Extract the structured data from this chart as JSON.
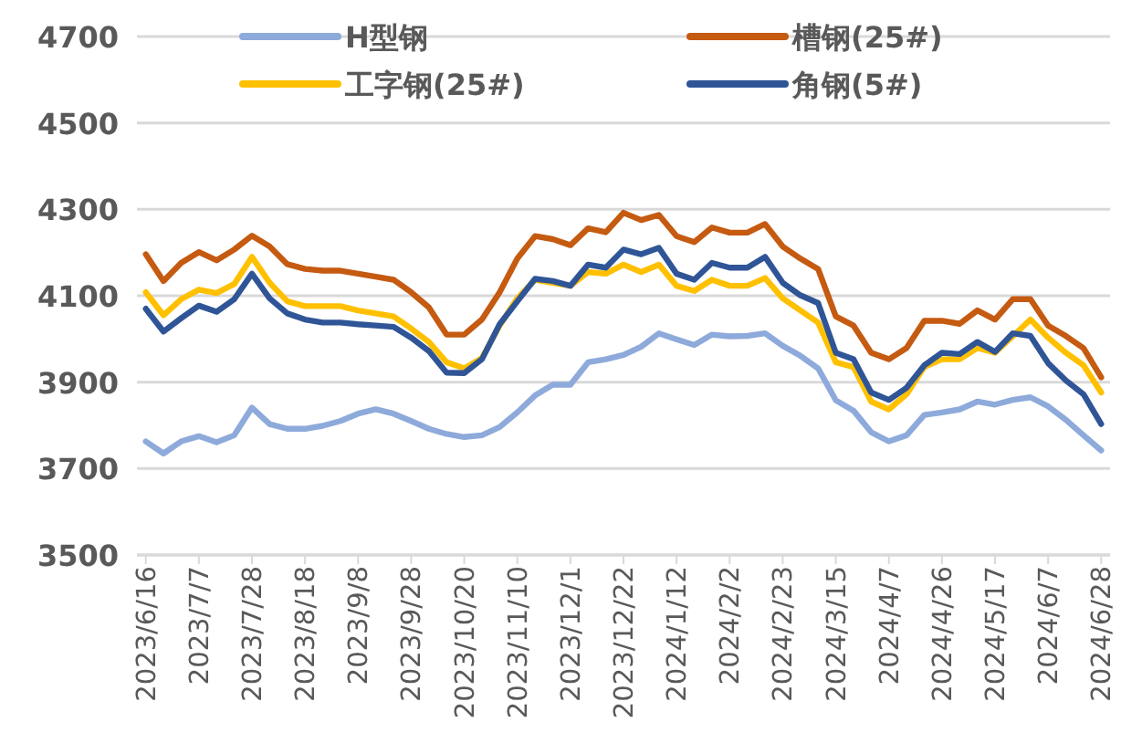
{
  "chart_data": {
    "type": "line",
    "categories": [
      "2023/6/16",
      null,
      null,
      "2023/7/7",
      null,
      null,
      "2023/7/28",
      null,
      null,
      "2023/8/18",
      null,
      null,
      "2023/9/8",
      null,
      null,
      "2023/9/28",
      null,
      null,
      "2023/10/20",
      null,
      null,
      "2023/11/10",
      null,
      null,
      "2023/12/1",
      null,
      null,
      "2023/12/22",
      null,
      null,
      "2024/1/12",
      null,
      null,
      "2024/2/2",
      null,
      null,
      "2024/2/23",
      null,
      null,
      "2024/3/15",
      null,
      null,
      "2024/4/7",
      null,
      null,
      "2024/4/26",
      null,
      null,
      "2024/5/17",
      null,
      null,
      "2024/6/7",
      null,
      null,
      "2024/6/28"
    ],
    "series": [
      {
        "name": "H型钢",
        "color": "#8eaadb",
        "values": [
          3763,
          3735,
          3763,
          3775,
          3761,
          3777,
          3841,
          3803,
          3792,
          3792,
          3799,
          3810,
          3827,
          3837,
          3827,
          3810,
          3792,
          3780,
          3773,
          3777,
          3796,
          3830,
          3869,
          3894,
          3894,
          3946,
          3953,
          3963,
          3982,
          4013,
          3999,
          3986,
          4010,
          4006,
          4007,
          4013,
          3984,
          3961,
          3932,
          3858,
          3834,
          3784,
          3763,
          3777,
          3824,
          3830,
          3837,
          3855,
          3848,
          3859,
          3865,
          3844,
          3813,
          3777,
          3742
        ]
      },
      {
        "name": "槽钢(25#)",
        "color": "#c55a11",
        "values": [
          4196,
          4134,
          4176,
          4201,
          4182,
          4207,
          4239,
          4214,
          4173,
          4162,
          4158,
          4158,
          4151,
          4144,
          4137,
          4108,
          4073,
          4010,
          4010,
          4045,
          4108,
          4186,
          4238,
          4231,
          4217,
          4256,
          4247,
          4292,
          4275,
          4287,
          4238,
          4224,
          4258,
          4246,
          4246,
          4266,
          4214,
          4186,
          4162,
          4052,
          4031,
          3968,
          3953,
          3979,
          4042,
          4042,
          4035,
          4066,
          4045,
          4092,
          4092,
          4031,
          4007,
          3979,
          3911
        ]
      },
      {
        "name": "工字钢(25#)",
        "color": "#ffc000",
        "values": [
          4108,
          4055,
          4092,
          4114,
          4106,
          4127,
          4190,
          4130,
          4087,
          4076,
          4076,
          4076,
          4066,
          4059,
          4052,
          4024,
          3993,
          3946,
          3932,
          3956,
          4031,
          4094,
          4137,
          4130,
          4123,
          4155,
          4151,
          4172,
          4155,
          4172,
          4123,
          4111,
          4137,
          4123,
          4123,
          4141,
          4094,
          4066,
          4038,
          3946,
          3935,
          3855,
          3837,
          3872,
          3935,
          3953,
          3953,
          3979,
          3968,
          4006,
          4045,
          4003,
          3968,
          3939,
          3876
        ]
      },
      {
        "name": "角钢(5#)",
        "color": "#2f5597",
        "values": [
          4070,
          4017,
          4048,
          4077,
          4063,
          4092,
          4151,
          4094,
          4059,
          4045,
          4038,
          4038,
          4034,
          4031,
          4028,
          4003,
          3972,
          3922,
          3921,
          3953,
          4034,
          4087,
          4139,
          4134,
          4123,
          4172,
          4165,
          4207,
          4196,
          4211,
          4151,
          4137,
          4176,
          4165,
          4165,
          4190,
          4130,
          4101,
          4083,
          3968,
          3953,
          3876,
          3859,
          3887,
          3939,
          3968,
          3965,
          3993,
          3970,
          4013,
          4007,
          3944,
          3904,
          3872,
          3803
        ]
      }
    ],
    "ylim": [
      3500,
      4700
    ],
    "yticks": [
      3500,
      3700,
      3900,
      4100,
      4300,
      4500,
      4700
    ],
    "grid": "y",
    "legend": "top",
    "line_style": "solid",
    "marker": "none"
  }
}
